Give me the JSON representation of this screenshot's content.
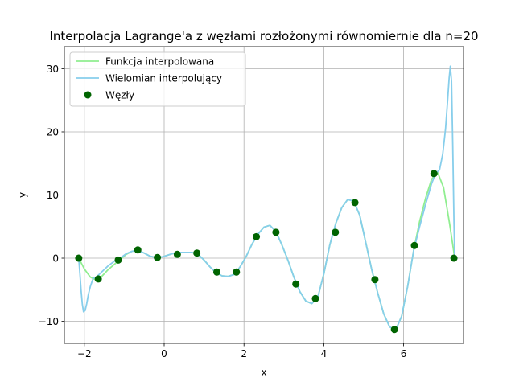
{
  "chart_data": {
    "type": "line",
    "title": "Interpolacja Lagrange'a z węzłami rozłożonymi równomiernie dla n=20",
    "xlabel": "x",
    "ylabel": "y",
    "xlim": [
      -2.5,
      7.5
    ],
    "ylim": [
      -13.5,
      33.5
    ],
    "xticks": [
      -2,
      0,
      2,
      4,
      6
    ],
    "xtick_labels": [
      "−2",
      "0",
      "2",
      "4",
      "6"
    ],
    "yticks": [
      -10,
      0,
      10,
      20,
      30
    ],
    "ytick_labels": [
      "−10",
      "0",
      "10",
      "20",
      "30"
    ],
    "grid": true,
    "legend_position": "top-left",
    "series": [
      {
        "name": "Funkcja interpolowana",
        "kind": "line",
        "color": "#90ee90",
        "x": [
          -2.14,
          -2.0,
          -1.85,
          -1.7,
          -1.55,
          -1.4,
          -1.25,
          -1.1,
          -0.95,
          -0.8,
          -0.65,
          -0.5,
          -0.35,
          -0.2,
          -0.05,
          0.1,
          0.25,
          0.4,
          0.55,
          0.7,
          0.85,
          1.0,
          1.15,
          1.3,
          1.45,
          1.6,
          1.75,
          1.9,
          2.05,
          2.2,
          2.35,
          2.5,
          2.65,
          2.8,
          2.95,
          3.1,
          3.25,
          3.4,
          3.55,
          3.7,
          3.85,
          4.0,
          4.15,
          4.3,
          4.45,
          4.6,
          4.75,
          4.9,
          5.05,
          5.2,
          5.35,
          5.5,
          5.65,
          5.8,
          5.95,
          6.1,
          6.25,
          6.4,
          6.55,
          6.7,
          6.85,
          7.0,
          7.15,
          7.28
        ],
        "y": [
          0.0,
          -1.7,
          -3.0,
          -3.5,
          -2.8,
          -1.8,
          -1.0,
          -0.2,
          0.6,
          1.1,
          1.2,
          0.8,
          0.3,
          0.1,
          0.2,
          0.5,
          0.8,
          0.9,
          0.9,
          0.9,
          0.6,
          -0.3,
          -1.4,
          -2.3,
          -2.8,
          -2.9,
          -2.6,
          -1.4,
          0.2,
          2.2,
          3.8,
          4.9,
          5.2,
          4.2,
          2.1,
          -0.3,
          -3.0,
          -5.3,
          -6.8,
          -7.2,
          -6.2,
          -2.5,
          2.1,
          5.5,
          8.0,
          9.3,
          9.0,
          6.8,
          2.5,
          -1.8,
          -5.5,
          -8.8,
          -10.9,
          -11.4,
          -9.2,
          -4.5,
          1.2,
          5.8,
          9.5,
          12.5,
          13.6,
          11.2,
          5.5,
          0.0
        ]
      },
      {
        "name": "Wielomian interpolujący",
        "kind": "line",
        "color": "#87ceeb",
        "x": [
          -2.14,
          -2.11,
          -2.08,
          -2.05,
          -2.02,
          -1.98,
          -1.94,
          -1.9,
          -1.85,
          -1.78,
          -1.7,
          -1.6,
          -1.5,
          -1.4,
          -1.25,
          -1.1,
          -0.95,
          -0.8,
          -0.65,
          -0.5,
          -0.35,
          -0.2,
          -0.05,
          0.1,
          0.25,
          0.4,
          0.55,
          0.7,
          0.85,
          1.0,
          1.15,
          1.3,
          1.45,
          1.6,
          1.75,
          1.9,
          2.05,
          2.2,
          2.35,
          2.5,
          2.65,
          2.8,
          2.95,
          3.1,
          3.25,
          3.4,
          3.55,
          3.7,
          3.85,
          4.0,
          4.15,
          4.3,
          4.45,
          4.6,
          4.75,
          4.9,
          5.05,
          5.2,
          5.35,
          5.5,
          5.65,
          5.8,
          5.95,
          6.1,
          6.25,
          6.4,
          6.55,
          6.7,
          6.8,
          6.9,
          6.98,
          7.05,
          7.1,
          7.14,
          7.17,
          7.2,
          7.23,
          7.26,
          7.28
        ],
        "y": [
          0.0,
          -2.5,
          -5.2,
          -7.3,
          -8.5,
          -8.3,
          -7.2,
          -5.8,
          -4.5,
          -3.2,
          -3.0,
          -2.4,
          -1.8,
          -1.2,
          -0.5,
          0.0,
          0.7,
          1.1,
          1.2,
          0.8,
          0.3,
          0.1,
          0.2,
          0.5,
          0.8,
          0.9,
          0.9,
          0.9,
          0.6,
          -0.3,
          -1.4,
          -2.3,
          -2.8,
          -2.9,
          -2.6,
          -1.4,
          0.2,
          2.2,
          3.8,
          4.9,
          5.2,
          4.2,
          2.1,
          -0.3,
          -3.0,
          -5.3,
          -6.8,
          -7.2,
          -6.2,
          -2.5,
          2.1,
          5.5,
          8.0,
          9.3,
          9.0,
          6.8,
          2.5,
          -1.8,
          -5.5,
          -8.8,
          -10.9,
          -11.4,
          -9.2,
          -4.5,
          1.2,
          5.0,
          8.5,
          11.8,
          13.4,
          14.0,
          16.5,
          20.5,
          24.8,
          28.5,
          30.4,
          28.0,
          18.0,
          6.0,
          0.0
        ]
      },
      {
        "name": "Węzły",
        "kind": "scatter",
        "color": "#006400",
        "x": [
          -2.14,
          -1.65,
          -1.15,
          -0.66,
          -0.17,
          0.33,
          0.82,
          1.32,
          1.81,
          2.31,
          2.8,
          3.3,
          3.79,
          4.29,
          4.78,
          5.28,
          5.77,
          6.27,
          6.76,
          7.26
        ],
        "y": [
          0.0,
          -3.3,
          -0.3,
          1.3,
          0.1,
          0.6,
          0.8,
          -2.2,
          -2.2,
          3.4,
          4.1,
          -4.1,
          -6.4,
          4.1,
          8.8,
          -3.4,
          -11.3,
          2.0,
          13.4,
          0.0
        ]
      }
    ]
  }
}
